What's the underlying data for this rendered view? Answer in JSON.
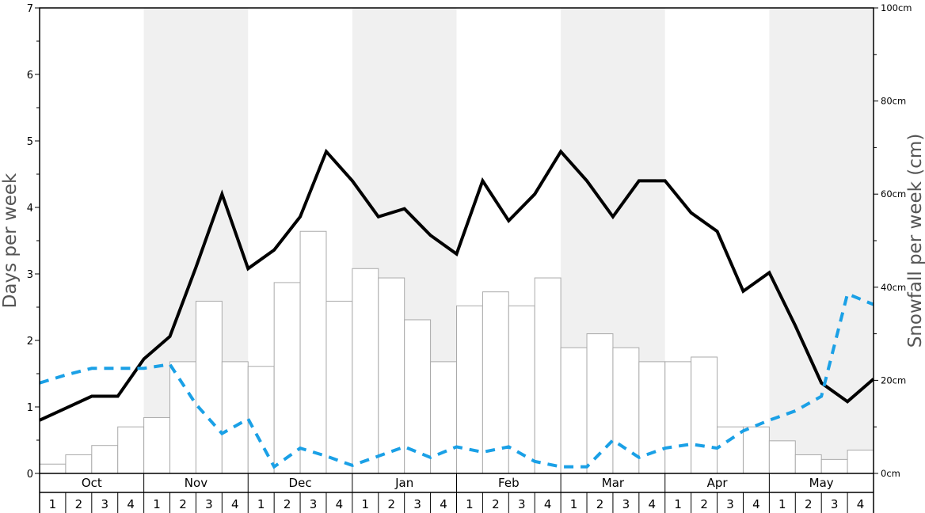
{
  "chart_data": {
    "type": "bar+line",
    "y_left_label": "Days per week",
    "y_right_label": "Snowfall per week (cm)",
    "y_left_range": [
      0,
      7
    ],
    "y_left_ticks": [
      "0",
      "1",
      "2",
      "3",
      "4",
      "5",
      "6",
      "7"
    ],
    "y_right_range": [
      0,
      100
    ],
    "y_right_ticks": [
      "0cm",
      "20cm",
      "40cm",
      "60cm",
      "80cm",
      "100cm"
    ],
    "months": [
      "Oct",
      "Nov",
      "Dec",
      "Jan",
      "Feb",
      "Mar",
      "Apr",
      "May"
    ],
    "week_labels": [
      "1",
      "2",
      "3",
      "4"
    ],
    "colors": {
      "bar_fill": "#ffffff",
      "bar_stroke": "#aaaaaa",
      "shade": "#f0f0f0",
      "days_line": "#000000",
      "dashed_line": "#1aa0e6"
    },
    "series": [
      {
        "type": "bar",
        "axis": "right",
        "values": [
          2.0,
          4.0,
          6.0,
          10.0,
          12.0,
          24.0,
          37.0,
          24.0,
          23.0,
          41.0,
          52.0,
          37.0,
          44.0,
          42.0,
          33.0,
          24.0,
          36.0,
          39.0,
          36.0,
          42.0,
          27.0,
          30.0,
          27.0,
          24.0,
          24.0,
          25.0,
          10.0,
          10.0,
          7.0,
          4.0,
          3.0,
          5.0
        ]
      },
      {
        "type": "line",
        "axis": "left",
        "style": "solid",
        "values": [
          0.8,
          0.98,
          1.16,
          1.16,
          1.72,
          2.06,
          3.1,
          4.2,
          3.08,
          3.36,
          3.86,
          4.84,
          4.4,
          3.86,
          3.98,
          3.58,
          3.3,
          4.4,
          3.8,
          4.2,
          4.84,
          4.4,
          3.86,
          4.4,
          4.4,
          3.92,
          3.64,
          2.74,
          3.02,
          2.22,
          1.36,
          1.08,
          1.42
        ]
      },
      {
        "type": "line",
        "axis": "left",
        "style": "dashed",
        "values": [
          1.36,
          1.48,
          1.58,
          1.58,
          1.58,
          1.64,
          1.04,
          0.6,
          0.82,
          0.1,
          0.38,
          0.26,
          0.12,
          0.26,
          0.4,
          0.24,
          0.4,
          0.32,
          0.4,
          0.18,
          0.1,
          0.1,
          0.5,
          0.24,
          0.38,
          0.44,
          0.38,
          0.64,
          0.8,
          0.94,
          1.16,
          2.7,
          2.54
        ]
      }
    ]
  }
}
